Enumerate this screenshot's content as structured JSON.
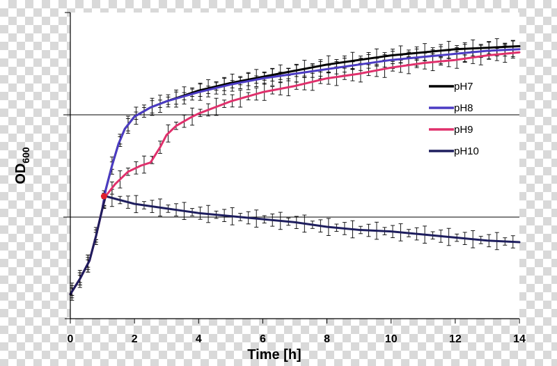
{
  "chart_data": {
    "type": "line",
    "xlabel": "Time [h]",
    "ylabel_main": "OD",
    "ylabel_sub": "600",
    "xlim": [
      0,
      14
    ],
    "x_ticks": [
      0,
      2,
      4,
      6,
      8,
      10,
      12,
      14
    ],
    "y_tick_labels": [],
    "grid": "horizontal lines, 2 shown",
    "legend_position": "right, inside plot",
    "series": [
      {
        "name": "pH7",
        "color": "#000000",
        "x": [
          0,
          0.3,
          0.6,
          0.8,
          1.0,
          1.1,
          1.3,
          1.5,
          1.7,
          2.0,
          2.5,
          3.0,
          4.0,
          5.0,
          6.0,
          7.0,
          8.0,
          9.0,
          10.0,
          11.0,
          12.0,
          13.0,
          14.0
        ],
        "y": [
          0.08,
          0.13,
          0.19,
          0.27,
          0.36,
          0.42,
          0.5,
          0.57,
          0.62,
          0.66,
          0.69,
          0.71,
          0.745,
          0.77,
          0.79,
          0.81,
          0.83,
          0.845,
          0.86,
          0.87,
          0.88,
          0.885,
          0.89
        ]
      },
      {
        "name": "pH8",
        "color": "#4b3bc4",
        "x": [
          0,
          0.3,
          0.6,
          0.8,
          1.0,
          1.1,
          1.3,
          1.5,
          1.7,
          2.0,
          2.5,
          3.0,
          4.0,
          5.0,
          6.0,
          7.0,
          8.0,
          9.0,
          10.0,
          11.0,
          12.0,
          13.0,
          14.0
        ],
        "y": [
          0.08,
          0.13,
          0.19,
          0.27,
          0.36,
          0.42,
          0.5,
          0.57,
          0.62,
          0.66,
          0.69,
          0.71,
          0.74,
          0.765,
          0.785,
          0.8,
          0.815,
          0.83,
          0.845,
          0.855,
          0.865,
          0.875,
          0.88
        ]
      },
      {
        "name": "pH9",
        "color": "#e0306c",
        "x": [
          0,
          0.3,
          0.6,
          0.8,
          1.0,
          1.1,
          1.4,
          1.8,
          2.2,
          2.5,
          2.8,
          3.0,
          3.3,
          3.8,
          4.0,
          5.0,
          6.0,
          7.0,
          8.0,
          9.0,
          10.0,
          11.0,
          12.0,
          13.0,
          14.0
        ],
        "y": [
          0.08,
          0.13,
          0.19,
          0.27,
          0.36,
          0.4,
          0.44,
          0.48,
          0.5,
          0.51,
          0.56,
          0.6,
          0.63,
          0.66,
          0.67,
          0.71,
          0.74,
          0.76,
          0.785,
          0.8,
          0.82,
          0.835,
          0.845,
          0.86,
          0.87
        ]
      },
      {
        "name": "pH10",
        "color": "#1e1e5e",
        "x": [
          0,
          0.3,
          0.6,
          0.8,
          1.0,
          1.1,
          2.0,
          3.0,
          4.0,
          5.0,
          6.0,
          7.0,
          8.0,
          9.0,
          10.0,
          11.0,
          12.0,
          13.0,
          14.0
        ],
        "y": [
          0.08,
          0.13,
          0.19,
          0.27,
          0.36,
          0.4,
          0.375,
          0.36,
          0.345,
          0.335,
          0.325,
          0.315,
          0.3,
          0.29,
          0.285,
          0.275,
          0.265,
          0.255,
          0.25
        ]
      }
    ],
    "marker": {
      "x": 1.05,
      "y": 0.4,
      "color": "#e0202c"
    }
  }
}
